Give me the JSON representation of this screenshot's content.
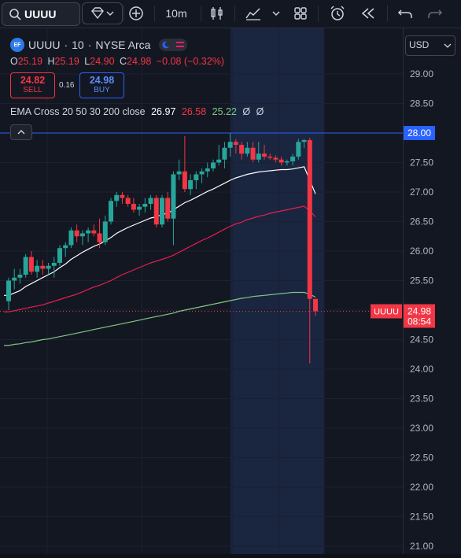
{
  "toolbar": {
    "symbol": "UUUU",
    "interval": "10m"
  },
  "header": {
    "symbol": "UUUU",
    "interval": "10",
    "exchange": "NYSE Arca",
    "ohlc": {
      "o_label": "O",
      "o_value": "25.19",
      "h_label": "H",
      "h_value": "25.19",
      "l_label": "L",
      "l_value": "24.90",
      "c_label": "C",
      "c_value": "24.98",
      "change": "−0.08 (−0.32%)"
    },
    "sell": {
      "price": "24.82",
      "label": "SELL"
    },
    "spread": "0.16",
    "buy": {
      "price": "24.98",
      "label": "BUY"
    },
    "indicator": {
      "name": "EMA Cross 20 50 30 200 close",
      "v1": "26.97",
      "v2": "26.58",
      "v3": "25.22",
      "v4": "Ø",
      "v5": "Ø"
    }
  },
  "currency": "USD",
  "colors": {
    "up": "#26a69a",
    "down": "#f23645",
    "ema_fast": "#ffffff",
    "ema_mid": "#e91e4d",
    "ema_slow": "#81c784",
    "hline": "#2962ff"
  },
  "chart_data": {
    "type": "candlestick",
    "ylim": [
      21.0,
      29.0
    ],
    "y_ticks": [
      "29.00",
      "28.50",
      "28.00",
      "27.50",
      "27.00",
      "26.50",
      "26.00",
      "25.50",
      "25.00",
      "24.50",
      "24.00",
      "23.50",
      "23.00",
      "22.50",
      "22.00",
      "21.50",
      "21.00"
    ],
    "horizontal_line": 28.0,
    "horizontal_line_label": "28.00",
    "last_price": 24.98,
    "last_price_label": "24.98",
    "last_price_symbol": "UUUU",
    "countdown": "08:54",
    "candles": [
      [
        25.15,
        25.55,
        25.0,
        25.5
      ],
      [
        25.5,
        25.7,
        25.35,
        25.55
      ],
      [
        25.55,
        25.7,
        25.45,
        25.6
      ],
      [
        25.6,
        25.95,
        25.55,
        25.9
      ],
      [
        25.9,
        26.0,
        25.6,
        25.65
      ],
      [
        25.65,
        25.85,
        25.55,
        25.75
      ],
      [
        25.75,
        25.85,
        25.6,
        25.7
      ],
      [
        25.7,
        25.8,
        25.6,
        25.75
      ],
      [
        25.75,
        25.9,
        25.55,
        25.8
      ],
      [
        25.8,
        26.1,
        25.75,
        26.05
      ],
      [
        26.05,
        26.15,
        25.9,
        26.1
      ],
      [
        26.1,
        26.4,
        26.05,
        26.35
      ],
      [
        26.35,
        26.45,
        26.15,
        26.25
      ],
      [
        26.25,
        26.35,
        26.1,
        26.3
      ],
      [
        26.3,
        26.4,
        26.15,
        26.35
      ],
      [
        26.35,
        26.45,
        26.25,
        26.3
      ],
      [
        26.3,
        26.55,
        26.05,
        26.15
      ],
      [
        26.15,
        26.6,
        26.1,
        26.5
      ],
      [
        26.5,
        26.9,
        26.45,
        26.85
      ],
      [
        26.85,
        27.0,
        26.75,
        26.95
      ],
      [
        26.95,
        27.0,
        26.8,
        26.9
      ],
      [
        26.9,
        26.95,
        26.75,
        26.8
      ],
      [
        26.8,
        26.9,
        26.65,
        26.7
      ],
      [
        26.7,
        26.8,
        26.6,
        26.75
      ],
      [
        26.75,
        26.9,
        26.65,
        26.8
      ],
      [
        26.8,
        26.95,
        26.7,
        26.9
      ],
      [
        26.9,
        26.95,
        26.4,
        26.45
      ],
      [
        26.45,
        26.95,
        26.4,
        26.9
      ],
      [
        26.9,
        27.0,
        26.5,
        26.55
      ],
      [
        26.55,
        27.35,
        26.1,
        27.3
      ],
      [
        27.3,
        27.55,
        27.2,
        27.35
      ],
      [
        27.35,
        27.95,
        27.0,
        27.05
      ],
      [
        27.05,
        27.3,
        26.95,
        27.2
      ],
      [
        27.2,
        27.35,
        27.05,
        27.3
      ],
      [
        27.3,
        27.4,
        27.15,
        27.35
      ],
      [
        27.35,
        27.5,
        27.25,
        27.4
      ],
      [
        27.4,
        27.55,
        27.35,
        27.5
      ],
      [
        27.5,
        27.8,
        27.45,
        27.55
      ],
      [
        27.55,
        27.85,
        27.4,
        27.75
      ],
      [
        27.75,
        28.0,
        27.6,
        27.85
      ],
      [
        27.85,
        27.9,
        27.65,
        27.8
      ],
      [
        27.8,
        27.85,
        27.55,
        27.65
      ],
      [
        27.65,
        27.85,
        27.6,
        27.75
      ],
      [
        27.75,
        27.85,
        27.5,
        27.55
      ],
      [
        27.55,
        27.85,
        27.5,
        27.65
      ],
      [
        27.65,
        27.8,
        27.55,
        27.6
      ],
      [
        27.6,
        27.65,
        27.55,
        27.58
      ],
      [
        27.58,
        27.62,
        27.5,
        27.55
      ],
      [
        27.55,
        27.6,
        27.45,
        27.5
      ],
      [
        27.5,
        27.55,
        27.45,
        27.52
      ],
      [
        27.52,
        27.65,
        27.45,
        27.6
      ],
      [
        27.6,
        27.9,
        27.55,
        27.85
      ],
      [
        27.85,
        27.9,
        27.75,
        27.88
      ],
      [
        27.88,
        27.92,
        24.1,
        25.19
      ],
      [
        25.19,
        25.19,
        24.9,
        24.98
      ]
    ],
    "ema_fast": [
      25.25,
      25.29,
      25.33,
      25.4,
      25.45,
      25.5,
      25.55,
      25.6,
      25.65,
      25.72,
      25.78,
      25.86,
      25.92,
      25.98,
      26.03,
      26.08,
      26.12,
      26.17,
      26.23,
      26.3,
      26.35,
      26.4,
      26.44,
      26.48,
      26.52,
      26.56,
      26.58,
      26.62,
      26.64,
      26.7,
      26.76,
      26.82,
      26.86,
      26.91,
      26.96,
      27.01,
      27.05,
      27.1,
      27.15,
      27.2,
      27.24,
      27.27,
      27.3,
      27.32,
      27.34,
      27.35,
      27.36,
      27.37,
      27.38,
      27.38,
      27.39,
      27.41,
      27.43,
      27.2,
      26.97
    ],
    "ema_mid": [
      24.97,
      24.99,
      25.01,
      25.03,
      25.05,
      25.07,
      25.09,
      25.12,
      25.15,
      25.18,
      25.21,
      25.24,
      25.27,
      25.31,
      25.35,
      25.39,
      25.42,
      25.46,
      25.5,
      25.55,
      25.6,
      25.64,
      25.68,
      25.72,
      25.76,
      25.8,
      25.83,
      25.86,
      25.89,
      25.93,
      25.98,
      26.03,
      26.08,
      26.13,
      26.18,
      26.22,
      26.27,
      26.32,
      26.37,
      26.42,
      26.46,
      26.49,
      26.53,
      26.56,
      26.59,
      26.61,
      26.64,
      26.66,
      26.68,
      26.7,
      26.72,
      26.74,
      26.76,
      26.68,
      26.58
    ],
    "ema_slow": [
      24.4,
      24.42,
      24.43,
      24.45,
      24.46,
      24.48,
      24.5,
      24.51,
      24.53,
      24.55,
      24.57,
      24.59,
      24.61,
      24.63,
      24.65,
      24.67,
      24.69,
      24.71,
      24.73,
      24.75,
      24.77,
      24.79,
      24.81,
      24.83,
      24.85,
      24.87,
      24.89,
      24.91,
      24.93,
      24.95,
      24.98,
      25.0,
      25.02,
      25.04,
      25.06,
      25.08,
      25.1,
      25.12,
      25.14,
      25.16,
      25.18,
      25.2,
      25.21,
      25.23,
      25.24,
      25.25,
      25.26,
      25.27,
      25.28,
      25.29,
      25.3,
      25.3,
      25.3,
      25.27,
      25.22
    ]
  }
}
